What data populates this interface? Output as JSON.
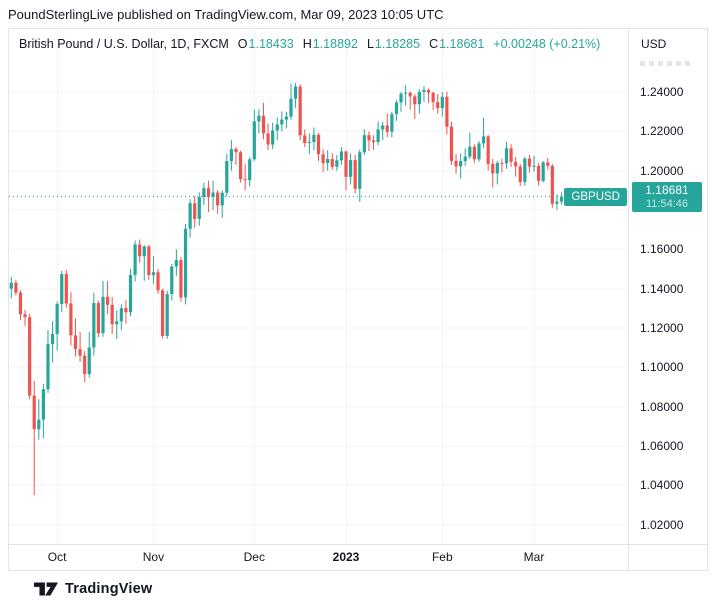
{
  "header": {
    "title": "PoundSterlingLive published on TradingView.com, Mar 09, 2023 10:05 UTC"
  },
  "legend": {
    "symbol_title": "British Pound / U.S. Dollar, 1D, FXCM",
    "ohlc": [
      {
        "label": "O",
        "value": "1.18433"
      },
      {
        "label": "H",
        "value": "1.18892"
      },
      {
        "label": "L",
        "value": "1.18285"
      },
      {
        "label": "C",
        "value": "1.18681"
      }
    ],
    "change": "+0.00248 (+0.21%)"
  },
  "symbol_tag": {
    "text": "GBPUSD"
  },
  "price_scale": {
    "currency": "USD",
    "ticks": [
      {
        "price": 1.24,
        "label": "1.24000"
      },
      {
        "price": 1.22,
        "label": "1.22000"
      },
      {
        "price": 1.2,
        "label": "1.20000"
      },
      {
        "price": 1.16,
        "label": "1.16000"
      },
      {
        "price": 1.14,
        "label": "1.14000"
      },
      {
        "price": 1.12,
        "label": "1.12000"
      },
      {
        "price": 1.1,
        "label": "1.10000"
      },
      {
        "price": 1.08,
        "label": "1.08000"
      },
      {
        "price": 1.06,
        "label": "1.06000"
      },
      {
        "price": 1.04,
        "label": "1.04000"
      },
      {
        "price": 1.02,
        "label": "1.02000"
      }
    ],
    "price_label": {
      "value": "1.18681",
      "countdown": "11:54:46"
    }
  },
  "time_scale": {
    "labels": [
      {
        "text": "Oct",
        "slot": 10,
        "bold": false
      },
      {
        "text": "Nov",
        "slot": 31,
        "bold": false
      },
      {
        "text": "Dec",
        "slot": 53,
        "bold": false
      },
      {
        "text": "2023",
        "slot": 73,
        "bold": true
      },
      {
        "text": "Feb",
        "slot": 94,
        "bold": false
      },
      {
        "text": "Mar",
        "slot": 114,
        "bold": false
      }
    ]
  },
  "footer": {
    "brand": "TradingView"
  },
  "colors": {
    "up": "#26a69a",
    "down": "#ef5350",
    "grid": "#f0f3fa",
    "border": "#e0e3eb",
    "text": "#131722",
    "label_bg": "#26a69a"
  },
  "chart_data": {
    "type": "candlestick",
    "title": "British Pound / U.S. Dollar",
    "symbol": "GBPUSD",
    "interval": "1D",
    "exchange": "FXCM",
    "ylabel": "USD",
    "grid": true,
    "y_range": [
      1.01015,
      1.27208
    ],
    "y_ticks": [
      1.02,
      1.04,
      1.06,
      1.08,
      1.1,
      1.12,
      1.14,
      1.16,
      1.18,
      1.2,
      1.22,
      1.24
    ],
    "total_slots": 135,
    "price_line": 1.18681,
    "last_bar": {
      "open": 1.18433,
      "high": 1.18892,
      "low": 1.18285,
      "close": 1.18681,
      "change": 0.00248,
      "change_pct": 0.21
    },
    "candles": [
      [
        1.14,
        1.146,
        1.135,
        1.143
      ],
      [
        1.143,
        1.1445,
        1.1365,
        1.138
      ],
      [
        1.138,
        1.1392,
        1.124,
        1.127
      ],
      [
        1.127,
        1.1292,
        1.121,
        1.1255
      ],
      [
        1.1255,
        1.1273,
        1.0838,
        1.0856
      ],
      [
        1.0856,
        1.093,
        1.035,
        1.0685
      ],
      [
        1.0685,
        1.0838,
        1.0632,
        1.0734
      ],
      [
        1.0734,
        1.0916,
        1.064,
        1.0889
      ],
      [
        1.0889,
        1.119,
        1.087,
        1.1118
      ],
      [
        1.1118,
        1.1235,
        1.1025,
        1.117
      ],
      [
        1.117,
        1.1334,
        1.1085,
        1.1322
      ],
      [
        1.1322,
        1.149,
        1.128,
        1.1474
      ],
      [
        1.1474,
        1.1495,
        1.1303,
        1.1325
      ],
      [
        1.1325,
        1.1382,
        1.1112,
        1.1163
      ],
      [
        1.1163,
        1.1249,
        1.1055,
        1.1093
      ],
      [
        1.1093,
        1.118,
        1.1027,
        1.1059
      ],
      [
        1.1059,
        1.1083,
        1.0925,
        1.0966
      ],
      [
        1.0966,
        1.118,
        1.0949,
        1.1101
      ],
      [
        1.1101,
        1.138,
        1.106,
        1.1327
      ],
      [
        1.1327,
        1.1339,
        1.1153,
        1.1174
      ],
      [
        1.1174,
        1.144,
        1.1154,
        1.1359
      ],
      [
        1.1359,
        1.144,
        1.127,
        1.1318
      ],
      [
        1.1318,
        1.1357,
        1.117,
        1.1219
      ],
      [
        1.1219,
        1.129,
        1.1144,
        1.1234
      ],
      [
        1.1234,
        1.132,
        1.119,
        1.1301
      ],
      [
        1.1301,
        1.1343,
        1.1222,
        1.128
      ],
      [
        1.128,
        1.15,
        1.126,
        1.147
      ],
      [
        1.147,
        1.1645,
        1.1437,
        1.1625
      ],
      [
        1.1625,
        1.165,
        1.1532,
        1.1565
      ],
      [
        1.1565,
        1.162,
        1.144,
        1.1615
      ],
      [
        1.1615,
        1.1622,
        1.1445,
        1.1469
      ],
      [
        1.1469,
        1.1565,
        1.1425,
        1.1484
      ],
      [
        1.1484,
        1.15,
        1.1374,
        1.1392
      ],
      [
        1.1392,
        1.14,
        1.1147,
        1.116
      ],
      [
        1.116,
        1.139,
        1.1145,
        1.1373
      ],
      [
        1.1373,
        1.1525,
        1.134,
        1.1513
      ],
      [
        1.1513,
        1.16,
        1.1465,
        1.1546
      ],
      [
        1.1546,
        1.156,
        1.1334,
        1.1356
      ],
      [
        1.1356,
        1.173,
        1.132,
        1.1705
      ],
      [
        1.1705,
        1.1855,
        1.166,
        1.1835
      ],
      [
        1.1835,
        1.187,
        1.171,
        1.1755
      ],
      [
        1.1755,
        1.189,
        1.172,
        1.1866
      ],
      [
        1.1866,
        1.194,
        1.1825,
        1.1911
      ],
      [
        1.1911,
        1.195,
        1.179,
        1.1866
      ],
      [
        1.1866,
        1.195,
        1.18,
        1.1889
      ],
      [
        1.1889,
        1.1902,
        1.178,
        1.1824
      ],
      [
        1.1824,
        1.19,
        1.176,
        1.1888
      ],
      [
        1.1888,
        1.2085,
        1.187,
        1.2049
      ],
      [
        1.2049,
        1.2155,
        1.2,
        1.211
      ],
      [
        1.211,
        1.2122,
        1.203,
        1.2094
      ],
      [
        1.2094,
        1.2102,
        1.194,
        1.1957
      ],
      [
        1.1957,
        1.2035,
        1.19,
        1.1952
      ],
      [
        1.1952,
        1.207,
        1.192,
        1.2058
      ],
      [
        1.2058,
        1.231,
        1.205,
        1.2251
      ],
      [
        1.2251,
        1.2312,
        1.219,
        1.228
      ],
      [
        1.228,
        1.2345,
        1.216,
        1.219
      ],
      [
        1.219,
        1.224,
        1.2105,
        1.2133
      ],
      [
        1.2133,
        1.2245,
        1.211,
        1.2205
      ],
      [
        1.2205,
        1.227,
        1.2155,
        1.2235
      ],
      [
        1.2235,
        1.2302,
        1.22,
        1.226
      ],
      [
        1.226,
        1.23,
        1.2215,
        1.2275
      ],
      [
        1.2275,
        1.2443,
        1.226,
        1.2366
      ],
      [
        1.2366,
        1.2446,
        1.232,
        1.2428
      ],
      [
        1.2428,
        1.244,
        1.2155,
        1.218
      ],
      [
        1.218,
        1.221,
        1.212,
        1.2141
      ],
      [
        1.2141,
        1.219,
        1.2085,
        1.2146
      ],
      [
        1.2146,
        1.222,
        1.2105,
        1.2183
      ],
      [
        1.2183,
        1.2192,
        1.205,
        1.2084
      ],
      [
        1.2084,
        1.211,
        1.1993,
        1.2039
      ],
      [
        1.2039,
        1.2105,
        1.2,
        1.206
      ],
      [
        1.206,
        1.209,
        1.2005,
        1.202
      ],
      [
        1.202,
        1.208,
        1.2,
        1.2053
      ],
      [
        1.2053,
        1.212,
        1.203,
        1.2098
      ],
      [
        1.2098,
        1.2102,
        1.19,
        1.1969
      ],
      [
        1.1969,
        1.2088,
        1.193,
        1.2054
      ],
      [
        1.2054,
        1.208,
        1.1885,
        1.1908
      ],
      [
        1.1908,
        1.2107,
        1.1841,
        1.2094
      ],
      [
        1.2094,
        1.221,
        1.208,
        1.2181
      ],
      [
        1.2181,
        1.22,
        1.21,
        1.2154
      ],
      [
        1.2154,
        1.218,
        1.2105,
        1.2146
      ],
      [
        1.2146,
        1.225,
        1.213,
        1.221
      ],
      [
        1.221,
        1.2248,
        1.2155,
        1.223
      ],
      [
        1.223,
        1.229,
        1.217,
        1.2198
      ],
      [
        1.2198,
        1.23,
        1.217,
        1.2288
      ],
      [
        1.2288,
        1.236,
        1.2254,
        1.2347
      ],
      [
        1.2347,
        1.24,
        1.23,
        1.2392
      ],
      [
        1.2392,
        1.2435,
        1.233,
        1.2397
      ],
      [
        1.2397,
        1.2402,
        1.231,
        1.2378
      ],
      [
        1.2378,
        1.239,
        1.2263,
        1.2338
      ],
      [
        1.2338,
        1.2415,
        1.229,
        1.2401
      ],
      [
        1.2401,
        1.243,
        1.235,
        1.2411
      ],
      [
        1.2411,
        1.2419,
        1.2345,
        1.2397
      ],
      [
        1.2397,
        1.24,
        1.2308,
        1.2349
      ],
      [
        1.2349,
        1.239,
        1.229,
        1.2318
      ],
      [
        1.2318,
        1.24,
        1.2275,
        1.2376
      ],
      [
        1.2376,
        1.2402,
        1.2185,
        1.2224
      ],
      [
        1.2224,
        1.225,
        1.203,
        1.205
      ],
      [
        1.205,
        1.2085,
        1.1985,
        1.2022
      ],
      [
        1.2022,
        1.2088,
        1.196,
        1.2049
      ],
      [
        1.2049,
        1.2115,
        1.2025,
        1.2072
      ],
      [
        1.2072,
        1.2194,
        1.206,
        1.2122
      ],
      [
        1.2122,
        1.2135,
        1.204,
        1.2058
      ],
      [
        1.2058,
        1.215,
        1.2045,
        1.2139
      ],
      [
        1.2139,
        1.227,
        1.2115,
        1.2175
      ],
      [
        1.2175,
        1.2182,
        1.2,
        1.2035
      ],
      [
        1.2035,
        1.206,
        1.1915,
        1.1986
      ],
      [
        1.1986,
        1.205,
        1.193,
        1.204
      ],
      [
        1.204,
        1.2062,
        1.199,
        1.2037
      ],
      [
        1.2037,
        1.2147,
        1.201,
        1.2114
      ],
      [
        1.2114,
        1.2135,
        1.202,
        1.2045
      ],
      [
        1.2045,
        1.207,
        1.197,
        1.2022
      ],
      [
        1.2022,
        1.2035,
        1.1922,
        1.1943
      ],
      [
        1.1943,
        1.207,
        1.1923,
        1.2062
      ],
      [
        1.2062,
        1.208,
        1.199,
        1.2021
      ],
      [
        1.2021,
        1.2075,
        1.1995,
        1.2025
      ],
      [
        1.2025,
        1.204,
        1.1925,
        1.1948
      ],
      [
        1.1948,
        1.205,
        1.194,
        1.2042
      ],
      [
        1.2042,
        1.2065,
        1.2005,
        1.2025
      ],
      [
        1.2025,
        1.2035,
        1.1812,
        1.1832
      ],
      [
        1.1832,
        1.188,
        1.1802,
        1.1843
      ],
      [
        1.18433,
        1.18892,
        1.18285,
        1.18681
      ]
    ]
  }
}
